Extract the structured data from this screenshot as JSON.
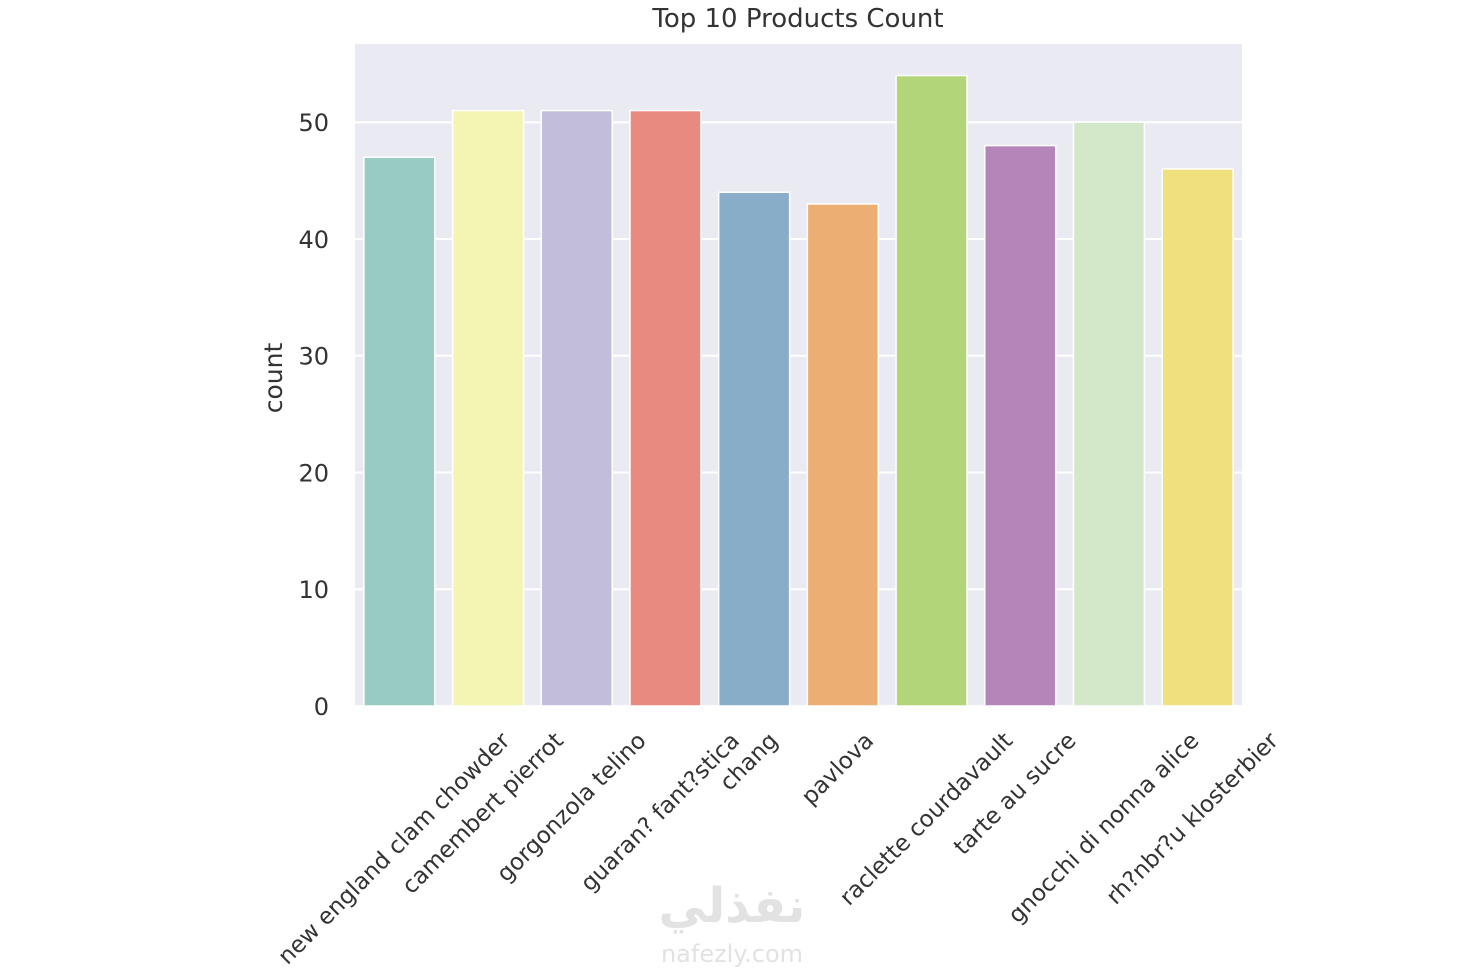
{
  "chart_data": {
    "type": "bar",
    "title": "Top 10 Products Count",
    "y_label": "count",
    "categories": [
      "new england clam chowder",
      "camembert pierrot",
      "gorgonzola telino",
      "guaran? fant?stica",
      "chang",
      "pavlova",
      "raclette courdavault",
      "tarte au sucre",
      "gnocchi di nonna alice",
      "rh?nbr?u klosterbier"
    ],
    "values": [
      47,
      51,
      51,
      51,
      44,
      43,
      54,
      48,
      50,
      46
    ],
    "colors": [
      "#98ccc2",
      "#f5f5b3",
      "#c2bed9",
      "#e98a80",
      "#88adc9",
      "#ecae72",
      "#b3d57a",
      "#b585b9",
      "#d3e8c9",
      "#f0e17e"
    ],
    "ylim": [
      0,
      56.7
    ],
    "yticks": [
      0,
      10,
      20,
      30,
      40,
      50
    ],
    "grid": true
  },
  "watermark": {
    "arabic": "نفذلي",
    "url": "nafezly.com"
  }
}
